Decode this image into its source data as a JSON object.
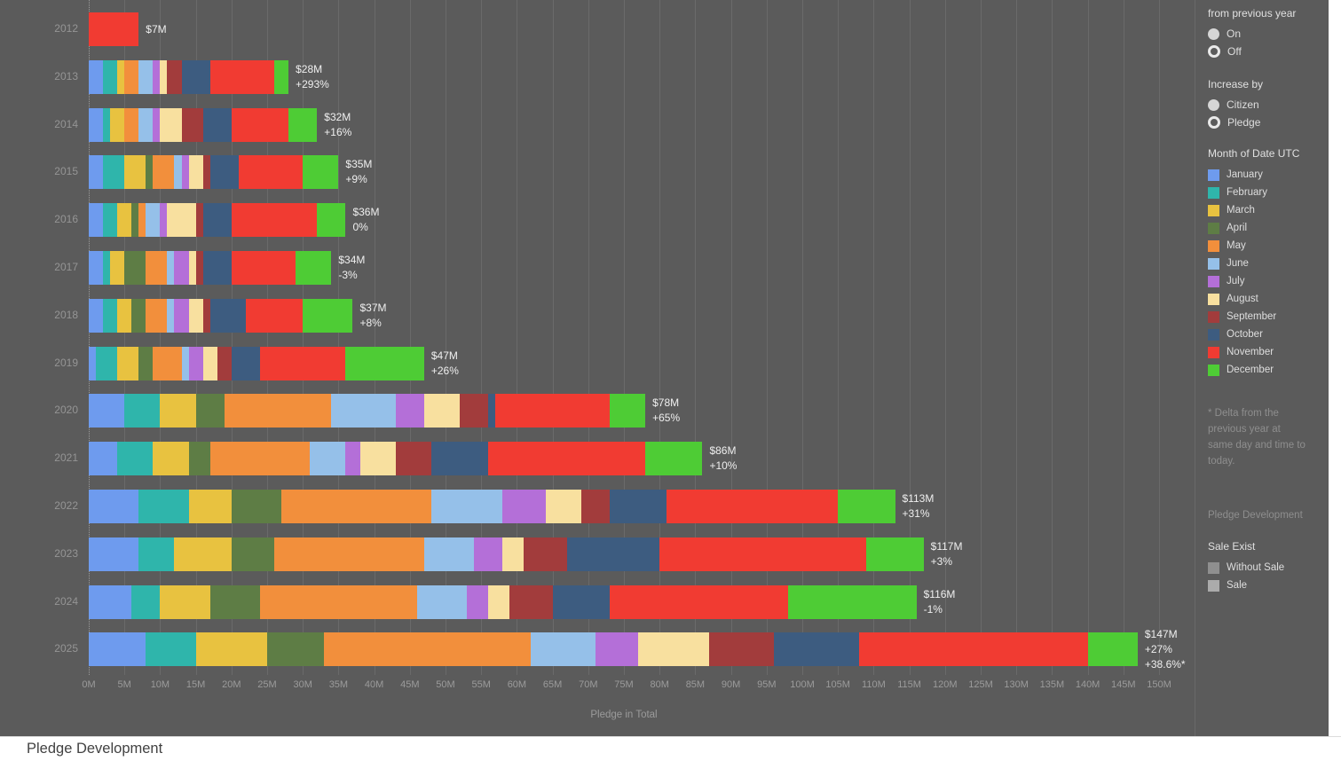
{
  "chart_data": {
    "type": "bar",
    "orientation": "horizontal",
    "stacked": true,
    "title": "Pledge Development",
    "xlabel": "Pledge in Total",
    "xlim": [
      0,
      150
    ],
    "x_unit": "M USD",
    "grid": true,
    "x_ticks": [
      "0M",
      "5M",
      "10M",
      "15M",
      "20M",
      "25M",
      "30M",
      "35M",
      "40M",
      "45M",
      "50M",
      "55M",
      "60M",
      "65M",
      "70M",
      "75M",
      "80M",
      "85M",
      "90M",
      "95M",
      "100M",
      "105M",
      "110M",
      "115M",
      "120M",
      "125M",
      "130M",
      "135M",
      "140M",
      "145M",
      "150M"
    ],
    "months": [
      "January",
      "February",
      "March",
      "April",
      "May",
      "June",
      "July",
      "August",
      "September",
      "October",
      "November",
      "December"
    ],
    "month_colors": {
      "January": "#6E9BEE",
      "February": "#2FB5AB",
      "March": "#E8C240",
      "April": "#5E7D45",
      "May": "#F28F3C",
      "June": "#95C0E9",
      "July": "#B46FD8",
      "August": "#F8E09F",
      "September": "#A23C3C",
      "October": "#3D5C80",
      "November": "#F13B32",
      "December": "#4ECC35"
    },
    "years": [
      {
        "year": "2012",
        "total_m": 7,
        "delta": null,
        "label_lines": [
          "$7M"
        ],
        "values": [
          0,
          0,
          0,
          0,
          0,
          0,
          0,
          0,
          0,
          0,
          7,
          0
        ]
      },
      {
        "year": "2013",
        "total_m": 28,
        "delta": "+293%",
        "label_lines": [
          "$28M",
          "+293%"
        ],
        "values": [
          2,
          2,
          1,
          0,
          2,
          2,
          1,
          1,
          2,
          4,
          9,
          2
        ]
      },
      {
        "year": "2014",
        "total_m": 32,
        "delta": "+16%",
        "label_lines": [
          "$32M",
          "+16%"
        ],
        "values": [
          2,
          1,
          2,
          0,
          2,
          2,
          1,
          3,
          3,
          4,
          8,
          4
        ]
      },
      {
        "year": "2015",
        "total_m": 35,
        "delta": "+9%",
        "label_lines": [
          "$35M",
          "+9%"
        ],
        "values": [
          2,
          3,
          3,
          1,
          3,
          1,
          1,
          2,
          1,
          4,
          9,
          5
        ]
      },
      {
        "year": "2016",
        "total_m": 36,
        "delta": "0%",
        "label_lines": [
          "$36M",
          "0%"
        ],
        "values": [
          2,
          2,
          2,
          1,
          1,
          2,
          1,
          4,
          1,
          4,
          12,
          4
        ]
      },
      {
        "year": "2017",
        "total_m": 34,
        "delta": "-3%",
        "label_lines": [
          "$34M",
          "-3%"
        ],
        "values": [
          2,
          1,
          2,
          3,
          3,
          1,
          2,
          1,
          1,
          4,
          9,
          5
        ]
      },
      {
        "year": "2018",
        "total_m": 37,
        "delta": "+8%",
        "label_lines": [
          "$37M",
          "+8%"
        ],
        "values": [
          2,
          2,
          2,
          2,
          3,
          1,
          2,
          2,
          1,
          5,
          8,
          7
        ]
      },
      {
        "year": "2019",
        "total_m": 47,
        "delta": "+26%",
        "label_lines": [
          "$47M",
          "+26%"
        ],
        "values": [
          1,
          3,
          3,
          2,
          4,
          1,
          2,
          2,
          2,
          4,
          12,
          11
        ]
      },
      {
        "year": "2020",
        "total_m": 78,
        "delta": "+65%",
        "label_lines": [
          "$78M",
          "+65%"
        ],
        "values": [
          5,
          5,
          5,
          4,
          15,
          9,
          4,
          5,
          4,
          1,
          16,
          5
        ]
      },
      {
        "year": "2021",
        "total_m": 86,
        "delta": "+10%",
        "label_lines": [
          "$86M",
          "+10%"
        ],
        "values": [
          4,
          5,
          5,
          3,
          14,
          5,
          2,
          5,
          5,
          8,
          22,
          8
        ]
      },
      {
        "year": "2022",
        "total_m": 113,
        "delta": "+31%",
        "label_lines": [
          "$113M",
          "+31%"
        ],
        "values": [
          7,
          7,
          6,
          7,
          21,
          10,
          6,
          5,
          4,
          8,
          24,
          8
        ]
      },
      {
        "year": "2023",
        "total_m": 117,
        "delta": "+3%",
        "label_lines": [
          "$117M",
          "+3%"
        ],
        "values": [
          7,
          5,
          8,
          6,
          21,
          7,
          4,
          3,
          6,
          13,
          29,
          8
        ]
      },
      {
        "year": "2024",
        "total_m": 116,
        "delta": "-1%",
        "label_lines": [
          "$116M",
          "-1%"
        ],
        "values": [
          6,
          4,
          7,
          7,
          22,
          7,
          3,
          3,
          6,
          8,
          25,
          18
        ]
      },
      {
        "year": "2025",
        "total_m": 147,
        "delta": "+27%",
        "label_lines": [
          "$147M",
          "+27%",
          "+38.6%*"
        ],
        "values": [
          8,
          7,
          10,
          8,
          29,
          9,
          6,
          10,
          9,
          12,
          32,
          7
        ]
      }
    ]
  },
  "sidebar": {
    "param_prev": {
      "title": "from previous year",
      "options": [
        {
          "label": "On",
          "selected": false
        },
        {
          "label": "Off",
          "selected": true
        }
      ]
    },
    "param_increase": {
      "title": "Increase by",
      "options": [
        {
          "label": "Citizen",
          "selected": false
        },
        {
          "label": "Pledge",
          "selected": true
        }
      ]
    },
    "month_legend": {
      "title": "Month of Date UTC"
    },
    "note": "* Delta from the previous year at same day and time to today.",
    "caption": "Pledge Development",
    "sale_legend": {
      "title": "Sale Exist",
      "items": [
        {
          "label": "Without Sale",
          "color": "#8F8F8F"
        },
        {
          "label": "Sale",
          "color": "#ABABAB"
        }
      ]
    }
  },
  "footer": {
    "title": "Pledge Development"
  }
}
